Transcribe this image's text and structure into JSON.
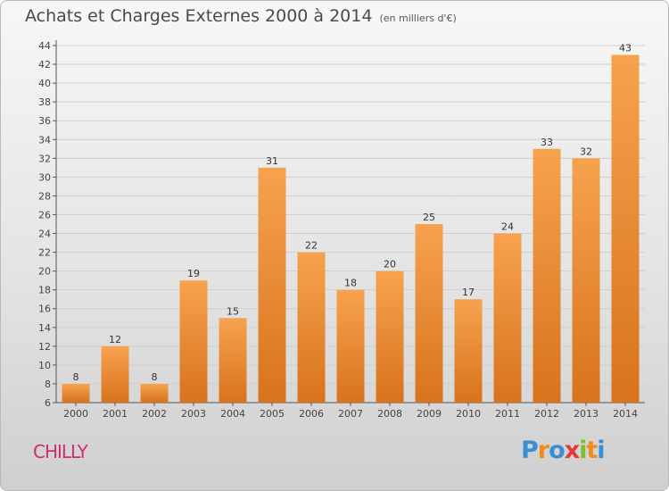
{
  "header": {
    "title": "Achats et Charges Externes 2000 à 2014",
    "subtitle": "(en milliers d'€)"
  },
  "footer": {
    "commune": "CHILLY",
    "brand_letters": [
      "P",
      "r",
      "o",
      "x",
      "i",
      "t",
      "i"
    ],
    "brand_colors": [
      "#3a8fd4",
      "#f08a1c",
      "#3a8fd4",
      "#e23a3a",
      "#7cbf2b",
      "#f08a1c",
      "#3a8fd4"
    ]
  },
  "chart_data": {
    "type": "bar",
    "title": "Achats et Charges Externes 2000 à 2014",
    "subtitle": "(en milliers d'€)",
    "categories": [
      "2000",
      "2001",
      "2002",
      "2003",
      "2004",
      "2005",
      "2006",
      "2007",
      "2008",
      "2009",
      "2010",
      "2011",
      "2012",
      "2013",
      "2014"
    ],
    "values": [
      8,
      12,
      8,
      19,
      15,
      31,
      22,
      18,
      20,
      25,
      17,
      24,
      33,
      32,
      43
    ],
    "ylim": [
      6,
      44
    ],
    "yticks": [
      6,
      8,
      10,
      12,
      14,
      16,
      18,
      20,
      22,
      24,
      26,
      28,
      30,
      32,
      34,
      36,
      38,
      40,
      42,
      44
    ],
    "grid": true,
    "bar_color_top": "#f7a24f",
    "bar_color_bottom": "#d8731c"
  }
}
